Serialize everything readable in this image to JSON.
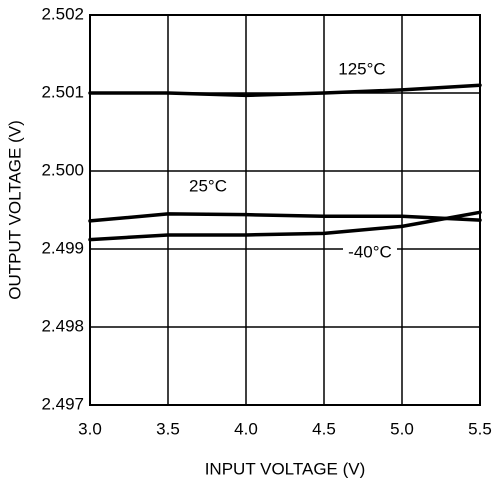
{
  "chart_data": {
    "type": "line",
    "xlabel": "INPUT VOLTAGE (V)",
    "ylabel": "OUTPUT VOLTAGE (V)",
    "x": [
      3.0,
      3.5,
      4.0,
      4.5,
      5.0,
      5.5
    ],
    "series": [
      {
        "name": "125°C",
        "color": "#000000",
        "values": [
          2.501,
          2.501,
          2.50097,
          2.501,
          2.50104,
          2.5011
        ]
      },
      {
        "name": "25°C",
        "color": "#000000",
        "values": [
          2.49936,
          2.49945,
          2.49944,
          2.49942,
          2.49942,
          2.49937
        ]
      },
      {
        "name": "-40°C",
        "color": "#000000",
        "values": [
          2.49912,
          2.49918,
          2.49918,
          2.4992,
          2.49929,
          2.49947
        ]
      }
    ],
    "xlim": [
      3.0,
      5.5
    ],
    "xticks": [
      {
        "value": 3.0,
        "label": "3.0"
      },
      3.5,
      {
        "value": 4.0,
        "label": "4.0"
      },
      4.5,
      {
        "value": 5.0,
        "label": "5.0"
      },
      5.5
    ],
    "ylim": [
      2.497,
      2.502
    ],
    "yticks": [
      2.497,
      2.498,
      2.499,
      {
        "value": 2.5,
        "label": "2.500"
      },
      2.501,
      2.502
    ],
    "grid": true
  }
}
